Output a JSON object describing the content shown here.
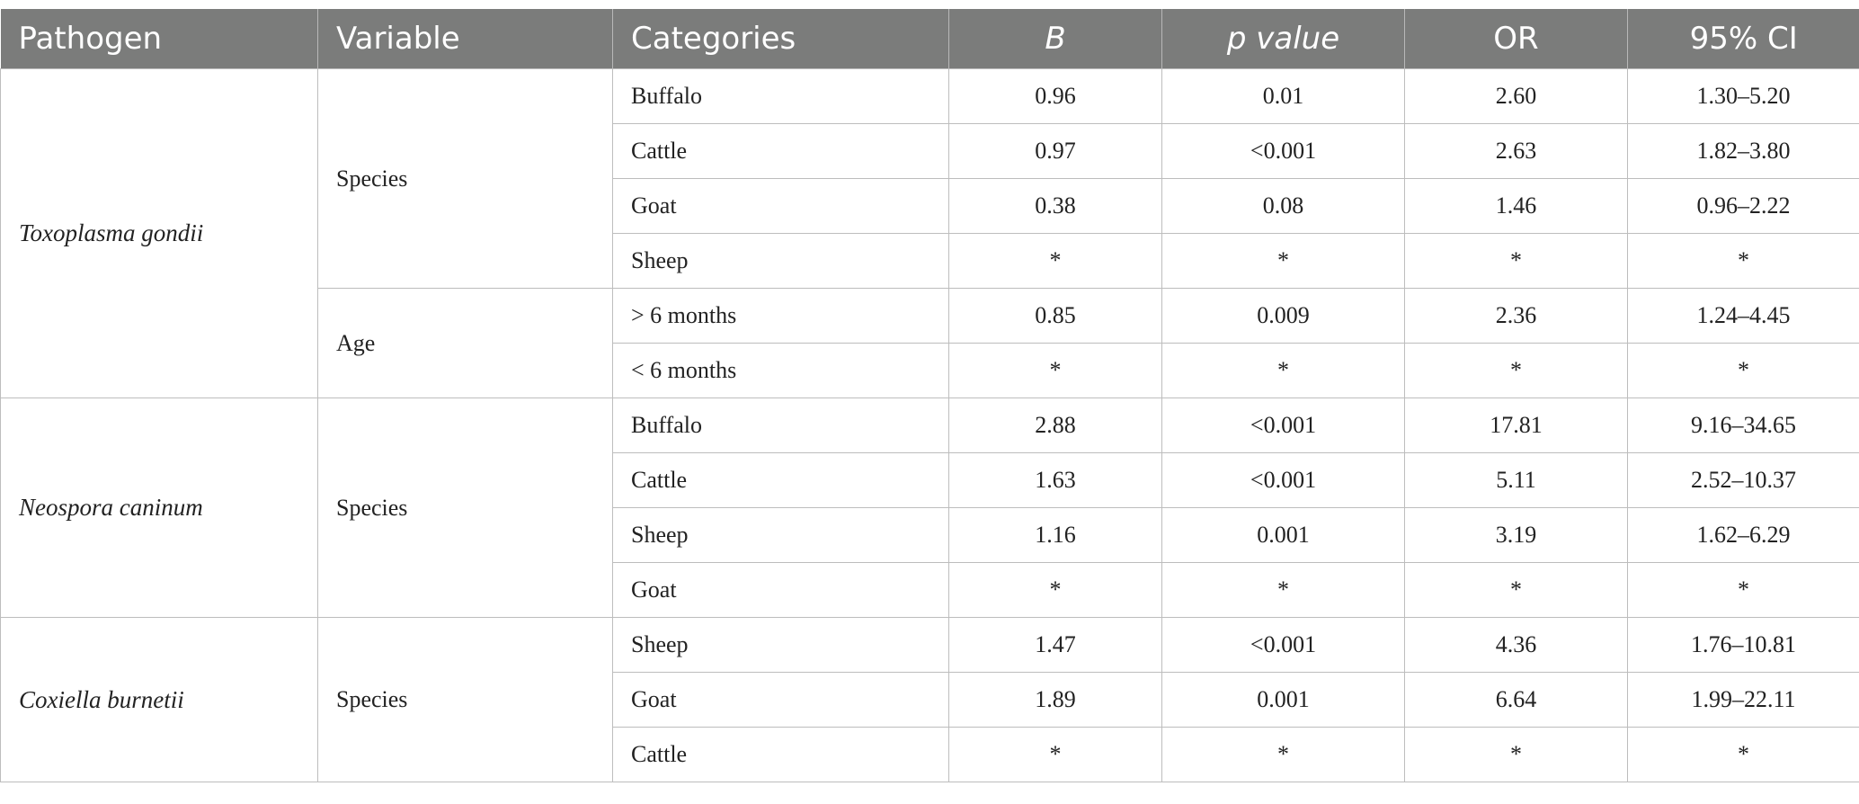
{
  "header": {
    "pathogen": "Pathogen",
    "variable": "Variable",
    "categories": "Categories",
    "b": "B",
    "p_value": "p value",
    "or": "OR",
    "ci": "95% CI"
  },
  "groups": [
    {
      "pathogen": "Toxoplasma gondii",
      "variables": [
        {
          "name": "Species",
          "rows": [
            {
              "category": "Buffalo",
              "b": "0.96",
              "p": "0.01",
              "or": "2.60",
              "ci": "1.30–5.20"
            },
            {
              "category": "Cattle",
              "b": "0.97",
              "p": "<0.001",
              "or": "2.63",
              "ci": "1.82–3.80"
            },
            {
              "category": "Goat",
              "b": "0.38",
              "p": "0.08",
              "or": "1.46",
              "ci": "0.96–2.22"
            },
            {
              "category": "Sheep",
              "b": "*",
              "p": "*",
              "or": "*",
              "ci": "*"
            }
          ]
        },
        {
          "name": "Age",
          "rows": [
            {
              "category": "> 6 months",
              "b": "0.85",
              "p": "0.009",
              "or": "2.36",
              "ci": "1.24–4.45"
            },
            {
              "category": "< 6 months",
              "b": "*",
              "p": "*",
              "or": "*",
              "ci": "*"
            }
          ]
        }
      ]
    },
    {
      "pathogen": "Neospora caninum",
      "variables": [
        {
          "name": "Species",
          "rows": [
            {
              "category": "Buffalo",
              "b": "2.88",
              "p": "<0.001",
              "or": "17.81",
              "ci": "9.16–34.65"
            },
            {
              "category": "Cattle",
              "b": "1.63",
              "p": "<0.001",
              "or": "5.11",
              "ci": "2.52–10.37"
            },
            {
              "category": "Sheep",
              "b": "1.16",
              "p": "0.001",
              "or": "3.19",
              "ci": "1.62–6.29"
            },
            {
              "category": "Goat",
              "b": "*",
              "p": "*",
              "or": "*",
              "ci": "*"
            }
          ]
        }
      ]
    },
    {
      "pathogen": "Coxiella burnetii",
      "variables": [
        {
          "name": "Species",
          "rows": [
            {
              "category": "Sheep",
              "b": "1.47",
              "p": "<0.001",
              "or": "4.36",
              "ci": "1.76–10.81"
            },
            {
              "category": "Goat",
              "b": "1.89",
              "p": "0.001",
              "or": "6.64",
              "ci": "1.99–22.11"
            },
            {
              "category": "Cattle",
              "b": "*",
              "p": "*",
              "or": "*",
              "ci": "*"
            }
          ]
        }
      ]
    }
  ]
}
